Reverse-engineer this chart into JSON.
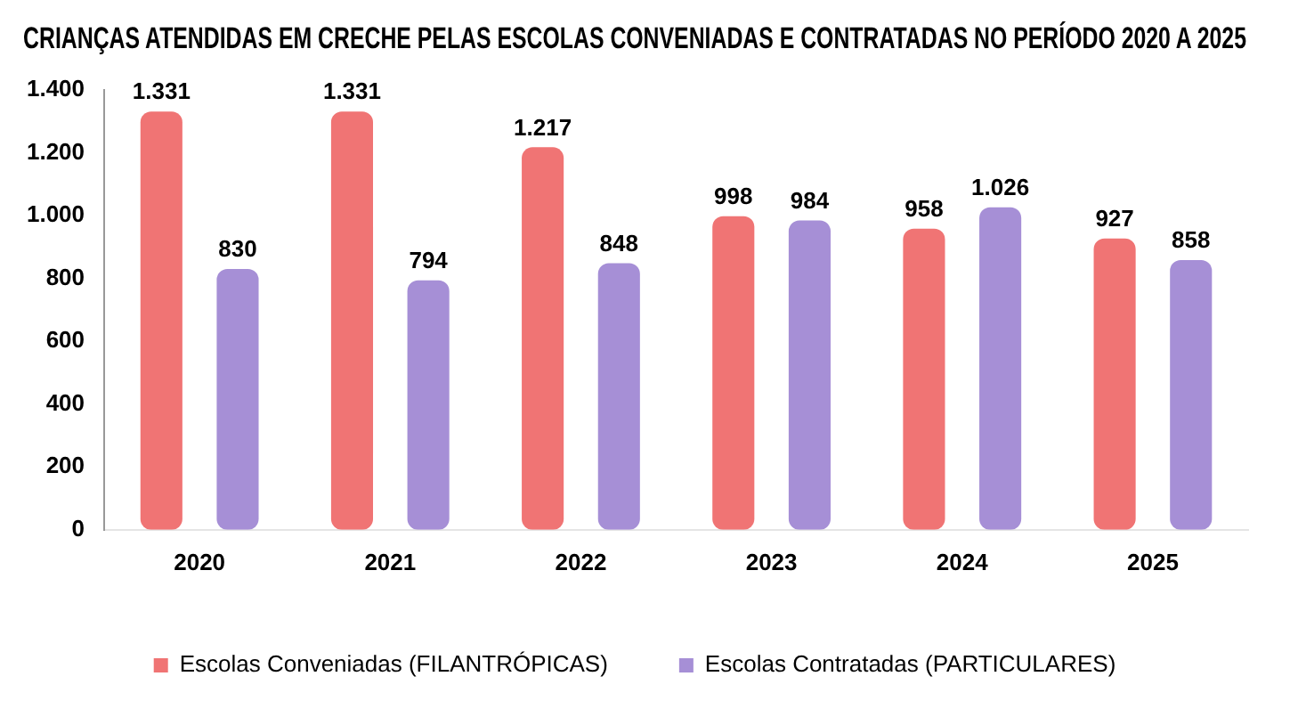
{
  "chart_data": {
    "type": "bar",
    "title": "CRIANÇAS ATENDIDAS EM CRECHE PELAS ESCOLAS CONVENIADAS E CONTRATADAS NO PERÍODO 2020 A 2025",
    "categories": [
      "2020",
      "2021",
      "2022",
      "2023",
      "2024",
      "2025"
    ],
    "series": [
      {
        "name": "Escolas Conveniadas (FILANTRÓPICAS)",
        "color": "#f07474",
        "values": [
          1331,
          1331,
          1217,
          998,
          958,
          927
        ],
        "value_labels": [
          "1.331",
          "1.331",
          "1.217",
          "998",
          "958",
          "927"
        ]
      },
      {
        "name": "Escolas Contratadas (PARTICULARES)",
        "color": "#a68fd6",
        "values": [
          830,
          794,
          848,
          984,
          1026,
          858
        ],
        "value_labels": [
          "830",
          "794",
          "848",
          "984",
          "1.026",
          "858"
        ]
      }
    ],
    "ylim": [
      0,
      1400
    ],
    "yticks": [
      0,
      {
        "value": 200,
        "label": "200"
      },
      {
        "value": 400,
        "label": "400"
      },
      {
        "value": 600,
        "label": "600"
      },
      {
        "value": 800,
        "label": "800"
      },
      {
        "value": 1000,
        "label": "1.000"
      },
      {
        "value": 1200,
        "label": "1.200"
      },
      {
        "value": 1400,
        "label": "1.400"
      }
    ],
    "grid": false,
    "legend": "bottom"
  }
}
